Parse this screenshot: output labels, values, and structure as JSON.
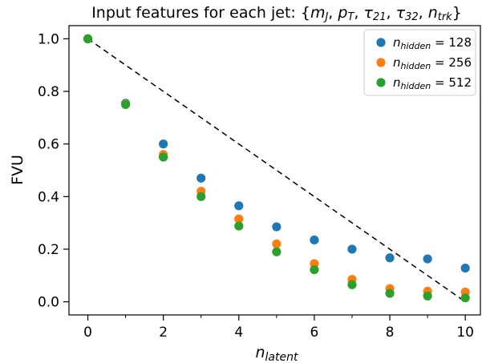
{
  "chart_data": {
    "type": "scatter",
    "title": "Input features for each jet: {m_J, p_T, τ_21, τ_32, n_trk}",
    "title_parts": [
      {
        "t": "Input features for each jet: {"
      },
      {
        "t": "m",
        "i": true
      },
      {
        "t": "J",
        "sub": true
      },
      {
        "t": ", "
      },
      {
        "t": "p",
        "i": true
      },
      {
        "t": "T",
        "sub": true
      },
      {
        "t": ", "
      },
      {
        "t": "τ",
        "i": true
      },
      {
        "t": "21",
        "sub": true
      },
      {
        "t": ", "
      },
      {
        "t": "τ",
        "i": true
      },
      {
        "t": "32",
        "sub": true
      },
      {
        "t": ", "
      },
      {
        "t": "n",
        "i": true
      },
      {
        "t": "trk",
        "sub": true
      },
      {
        "t": "}"
      }
    ],
    "xlabel": "n_latent",
    "ylabel": "FVU",
    "xlim": [
      -0.5,
      10.4
    ],
    "ylim": [
      -0.05,
      1.05
    ],
    "x_ticks": [
      0,
      2,
      4,
      6,
      8,
      10
    ],
    "x_tick_labels": [
      "0",
      "2",
      "4",
      "6",
      "8",
      "10"
    ],
    "x_minor_ticks": [
      1,
      3,
      5,
      7,
      9
    ],
    "y_ticks": [
      0.0,
      0.2,
      0.4,
      0.6,
      0.8,
      1.0
    ],
    "y_tick_labels": [
      "0.0",
      "0.2",
      "0.4",
      "0.6",
      "0.8",
      "1.0"
    ],
    "grid": false,
    "legend_placement": "top-right",
    "x": [
      0,
      1,
      2,
      3,
      4,
      5,
      6,
      7,
      8,
      9,
      10
    ],
    "series": [
      {
        "name": "n_hidden = 128",
        "color": "#1f77b4",
        "values": [
          1.0,
          0.755,
          0.6,
          0.47,
          0.365,
          0.285,
          0.235,
          0.2,
          0.167,
          0.163,
          0.128
        ]
      },
      {
        "name": "n_hidden = 256",
        "color": "#ff7f0e",
        "values": [
          1.0,
          0.752,
          0.56,
          0.42,
          0.315,
          0.22,
          0.145,
          0.085,
          0.05,
          0.04,
          0.037
        ]
      },
      {
        "name": "n_hidden = 512",
        "color": "#2ca02c",
        "values": [
          1.0,
          0.75,
          0.55,
          0.4,
          0.288,
          0.19,
          0.122,
          0.065,
          0.032,
          0.022,
          0.015
        ]
      }
    ],
    "reference_line": {
      "style": "dashed",
      "color": "#000000",
      "from": [
        0,
        1.0
      ],
      "to": [
        10,
        0.0
      ]
    }
  }
}
